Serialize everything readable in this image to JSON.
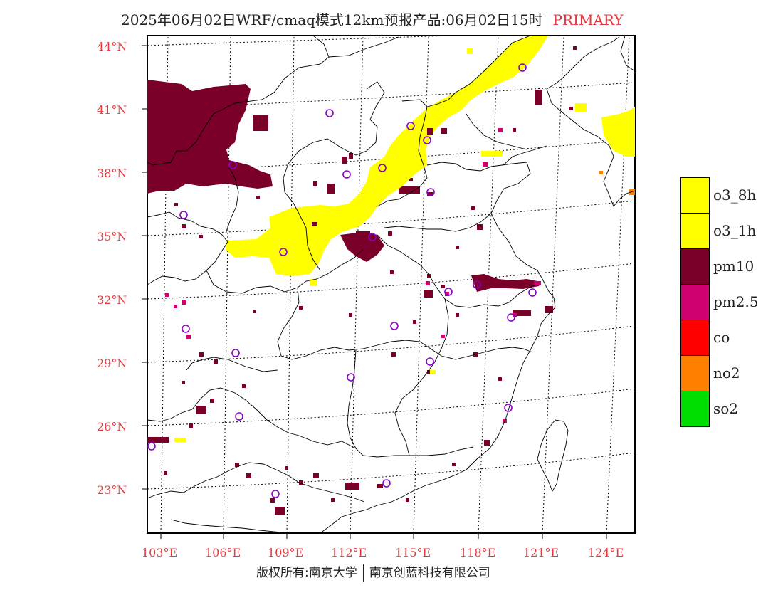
{
  "title": {
    "main": "2025年06月02日WRF/cmaq模式12km预报产品:06月02日15时",
    "tag": "PRIMARY"
  },
  "colors": {
    "o3_8h": "#ffff00",
    "o3_1h": "#ffff00",
    "pm10": "#7a0029",
    "pm2_5": "#d0006f",
    "co": "#ff0000",
    "no2": "#ff7f00",
    "so2": "#00dd00",
    "label_red": "#e8383d",
    "station": "#8a00c8"
  },
  "lat_labels": [
    "44°N",
    "41°N",
    "38°N",
    "35°N",
    "32°N",
    "29°N",
    "26°N",
    "23°N"
  ],
  "lon_labels": [
    "103°E",
    "106°E",
    "109°E",
    "112°E",
    "115°E",
    "118°E",
    "121°E",
    "124°E"
  ],
  "legend": [
    {
      "label": "o3_8h",
      "color": "#ffff00"
    },
    {
      "label": "o3_1h",
      "color": "#ffff00"
    },
    {
      "label": "pm10",
      "color": "#7a0029"
    },
    {
      "label": "pm2.5",
      "color": "#d0006f"
    },
    {
      "label": "co",
      "color": "#ff0000"
    },
    {
      "label": "no2",
      "color": "#ff7f00"
    },
    {
      "label": "so2",
      "color": "#00dd00"
    }
  ],
  "footer": {
    "left": "版权所有:南京大学",
    "right": "南京创蓝科技有限公司"
  }
}
